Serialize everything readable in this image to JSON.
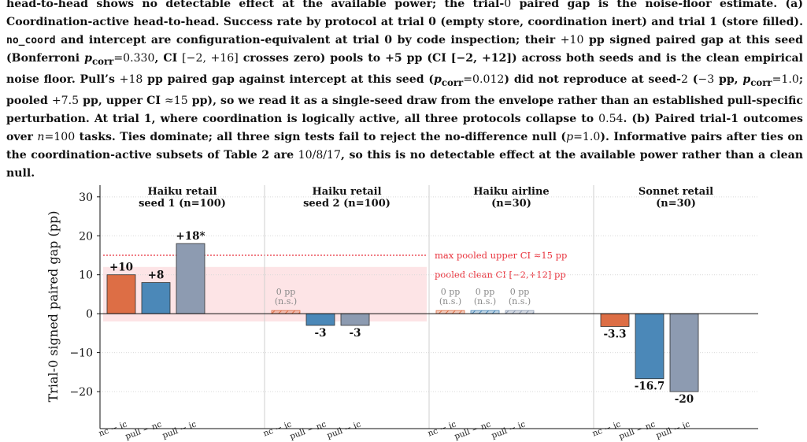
{
  "caption": {
    "s1": "head-to-head shows no detectable effect at the available power; the trial-",
    "s1_zero": "0",
    "s1b": " paired gap is the noise-floor estimate. (a) Coordination-active head-to-head. Success rate by protocol at trial 0 (empty store, coordination inert) and trial 1 (store filled). ",
    "code_no_coord": "no_coord",
    "s2": " and intercept are configuration-equivalent at trial 0 by code inspection; their ",
    "s2_num": "+10",
    "s2b": " pp signed paired gap at this seed (Bonferroni ",
    "p_corr_1": "p",
    "p_corr_sub": "corr",
    "s2_pval": "=0.330",
    "s2c": ", CI ",
    "s2_ci": "[−2, +16]",
    "s2d": " crosses zero) pools to +5 pp (CI [−2, +12]) across both seeds and is the clean empirical noise floor. Pull’s ",
    "s3_num": "+18",
    "s3": " pp paired gap against intercept at this seed (",
    "s3_p": "=0.012",
    "s3b": ") did not reproduce at seed-",
    "s3_seed": "2",
    "s3c": " (",
    "s3_neg": "−3",
    "s3d": " pp, ",
    "s3_p2": "=1.0",
    "s3e": "; pooled ",
    "s3_pooled": "+7.5",
    "s3f": " pp, upper CI ",
    "s3_ci": "≈15",
    "s3g": " pp), so we read it as a single-seed draw from the envelope rather than an established pull-specific perturbation. At trial 1, where coordination is logically active, all three protocols collapse to ",
    "s4_val": "0.54",
    "s4": ". (b) Paired trial-1 outcomes over ",
    "s4_n": "n",
    "s4_neq": "=100",
    "s4b": " tasks. Ties dominate; all three sign tests fail to reject the no-difference null (",
    "s4_p": "p",
    "s4_peq": "=1.0",
    "s4c": "). Informative pairs after ties on the coordination-active subsets of Table 2 are ",
    "s4_pairs": "10/8/17",
    "s4d": ", so this is no detectable effect at the available power rather than a clean null."
  },
  "chart_data": {
    "type": "bar",
    "ylabel": "Trial-0 signed paired gap (pp)",
    "ylim": [
      -29.5,
      33
    ],
    "yticks": [
      30,
      20,
      10,
      0,
      -10,
      -20
    ],
    "ytick_labels": [
      "30",
      "20",
      "10",
      "0",
      "−10",
      "−20"
    ],
    "grid": true,
    "categories": [
      "nc − ic",
      "pull − nc",
      "pull − ic"
    ],
    "series_colors": [
      "#dd6e45",
      "#4b88b8",
      "#8d9bb1"
    ],
    "reference_lines": [
      {
        "label": "max pooled upper CI ≈15 pp",
        "y": 15,
        "color": "#e8323c"
      }
    ],
    "reference_bands": [
      {
        "label": "pooled clean CI [−2,+12] pp",
        "y0": -2,
        "y1": 12,
        "color": "#fde4e6"
      }
    ],
    "groups": [
      {
        "title": "Haiku retail\nseed 1 (n=100)",
        "values": [
          10,
          8,
          18
        ],
        "labels": [
          "+10",
          "+8",
          "+18*"
        ],
        "zero_notes": [
          false,
          false,
          false
        ]
      },
      {
        "title": "Haiku retail\nseed 2 (n=100)",
        "values": [
          0,
          -3,
          -3
        ],
        "labels": [
          "",
          "-3",
          "-3"
        ],
        "zero_notes": [
          true,
          false,
          false
        ]
      },
      {
        "title": "Haiku airline\n(n=30)",
        "values": [
          0,
          0,
          0
        ],
        "labels": [
          "",
          "",
          ""
        ],
        "zero_notes": [
          true,
          true,
          true
        ]
      },
      {
        "title": "Sonnet retail\n(n=30)",
        "values": [
          -3.3,
          -16.7,
          -20
        ],
        "labels": [
          "-3.3",
          "-16.7",
          "-20"
        ],
        "zero_notes": [
          false,
          false,
          false
        ]
      }
    ],
    "zero_note_line1": "0 pp",
    "zero_note_line2": "(n.s.)"
  }
}
